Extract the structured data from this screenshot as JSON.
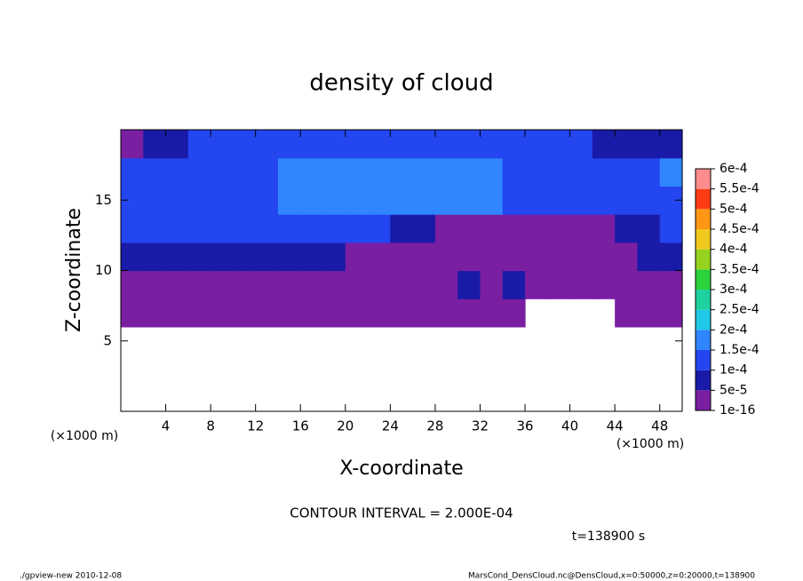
{
  "chart_data": {
    "type": "contour",
    "title": "density of cloud",
    "xlabel": "X-coordinate",
    "ylabel": "Z-coordinate",
    "x_unit": "(×1000 m)",
    "y_unit": "(×1000 m)",
    "note": "CONTOUR INTERVAL = 2.000E-04",
    "time_label": "t=138900 s",
    "footer_left": "./gpview-new  2010-12-08",
    "footer_right": "MarsCond_DensCloud.nc@DensCloud,x=0:50000,z=0:20000,t=138900",
    "xlim": [
      0,
      50
    ],
    "ylim": [
      0,
      20
    ],
    "xticks": [
      4,
      8,
      12,
      16,
      20,
      24,
      28,
      32,
      36,
      40,
      44,
      48
    ],
    "yticks": [
      5,
      10,
      15
    ],
    "x": [
      1,
      3,
      5,
      7,
      9,
      11,
      13,
      15,
      17,
      19,
      21,
      23,
      25,
      27,
      29,
      31,
      33,
      35,
      37,
      39,
      41,
      43,
      45,
      47,
      49
    ],
    "y": [
      1,
      3,
      5,
      7,
      9,
      11,
      13,
      15,
      17,
      19
    ],
    "values": [
      [
        null,
        null,
        null,
        null,
        null,
        null,
        null,
        null,
        null,
        null,
        null,
        null,
        null,
        null,
        null,
        null,
        null,
        null,
        null,
        null,
        null,
        null,
        null,
        null,
        null
      ],
      [
        null,
        null,
        null,
        null,
        null,
        null,
        null,
        null,
        null,
        null,
        null,
        null,
        null,
        null,
        null,
        null,
        null,
        null,
        null,
        null,
        null,
        null,
        null,
        null,
        null
      ],
      [
        null,
        null,
        null,
        null,
        null,
        null,
        null,
        null,
        null,
        null,
        null,
        null,
        null,
        null,
        null,
        null,
        null,
        null,
        null,
        null,
        null,
        null,
        null,
        null,
        null
      ],
      [
        3e-05,
        3e-05,
        3e-05,
        3e-05,
        3e-05,
        3e-05,
        3e-05,
        3e-05,
        3e-05,
        3e-05,
        3e-05,
        3e-05,
        3e-05,
        3e-05,
        3e-05,
        3e-05,
        3e-05,
        3e-05,
        null,
        null,
        null,
        null,
        3e-05,
        3e-05,
        3e-05
      ],
      [
        3e-05,
        3e-05,
        3e-05,
        3e-05,
        3e-05,
        3e-05,
        3e-05,
        3e-05,
        3e-05,
        3e-05,
        3e-05,
        3e-05,
        3e-05,
        3e-05,
        3e-05,
        7e-05,
        3e-05,
        7e-05,
        3e-05,
        3e-05,
        3e-05,
        3e-05,
        3e-05,
        3e-05,
        3e-05
      ],
      [
        7e-05,
        7e-05,
        7e-05,
        7e-05,
        7e-05,
        7e-05,
        7e-05,
        7e-05,
        7e-05,
        7e-05,
        3e-05,
        3e-05,
        3e-05,
        3e-05,
        3e-05,
        3e-05,
        3e-05,
        3e-05,
        3e-05,
        3e-05,
        3e-05,
        3e-05,
        3e-05,
        7e-05,
        7e-05
      ],
      [
        0.00012,
        0.00012,
        0.00012,
        0.00012,
        0.00012,
        0.00012,
        0.00012,
        0.00012,
        0.00012,
        0.00012,
        0.00012,
        0.00012,
        7e-05,
        7e-05,
        3e-05,
        3e-05,
        3e-05,
        3e-05,
        3e-05,
        3e-05,
        3e-05,
        3e-05,
        7e-05,
        7e-05,
        0.00012
      ],
      [
        0.00012,
        0.00012,
        0.00012,
        0.00012,
        0.00012,
        0.00012,
        0.00012,
        0.00016,
        0.00016,
        0.00016,
        0.00016,
        0.00016,
        0.00016,
        0.00016,
        0.00016,
        0.00016,
        0.00016,
        0.00012,
        0.00012,
        0.00012,
        0.00012,
        0.00012,
        0.00012,
        0.00012,
        0.00012
      ],
      [
        0.00012,
        0.00012,
        0.00012,
        0.00012,
        0.00012,
        0.00012,
        0.00012,
        0.00016,
        0.00016,
        0.00016,
        0.00016,
        0.00016,
        0.00016,
        0.00016,
        0.00016,
        0.00016,
        0.00016,
        0.00012,
        0.00012,
        0.00012,
        0.00012,
        0.00012,
        0.00012,
        0.00012,
        0.00016
      ],
      [
        3e-05,
        7e-05,
        7e-05,
        0.00012,
        0.00012,
        0.00012,
        0.00012,
        0.00012,
        0.00012,
        0.00012,
        0.00012,
        0.00012,
        0.00012,
        0.00012,
        0.00012,
        0.00012,
        0.00012,
        0.00012,
        0.00012,
        0.00012,
        0.00012,
        7e-05,
        7e-05,
        7e-05,
        7e-05
      ]
    ],
    "colorbar": {
      "levels": [
        {
          "value": 1e-16,
          "label": "1e-16"
        },
        {
          "value": 5e-05,
          "label": "5e-5"
        },
        {
          "value": 0.0001,
          "label": "1e-4"
        },
        {
          "value": 0.00015,
          "label": "1.5e-4"
        },
        {
          "value": 0.0002,
          "label": "2e-4"
        },
        {
          "value": 0.00025,
          "label": "2.5e-4"
        },
        {
          "value": 0.0003,
          "label": "3e-4"
        },
        {
          "value": 0.00035,
          "label": "3.5e-4"
        },
        {
          "value": 0.0004,
          "label": "4e-4"
        },
        {
          "value": 0.00045,
          "label": "4.5e-4"
        },
        {
          "value": 0.0005,
          "label": "5e-4"
        },
        {
          "value": 0.00055,
          "label": "5.5e-4"
        },
        {
          "value": 0.0006,
          "label": "6e-4"
        }
      ],
      "colors": [
        "#7a1fa2",
        "#1a1aa8",
        "#2346f0",
        "#2f86ff",
        "#1ec8e6",
        "#1ed2a0",
        "#2ad23c",
        "#96d21e",
        "#f0c81e",
        "#ff9614",
        "#ff3c14",
        "#ff8c8c"
      ]
    }
  }
}
